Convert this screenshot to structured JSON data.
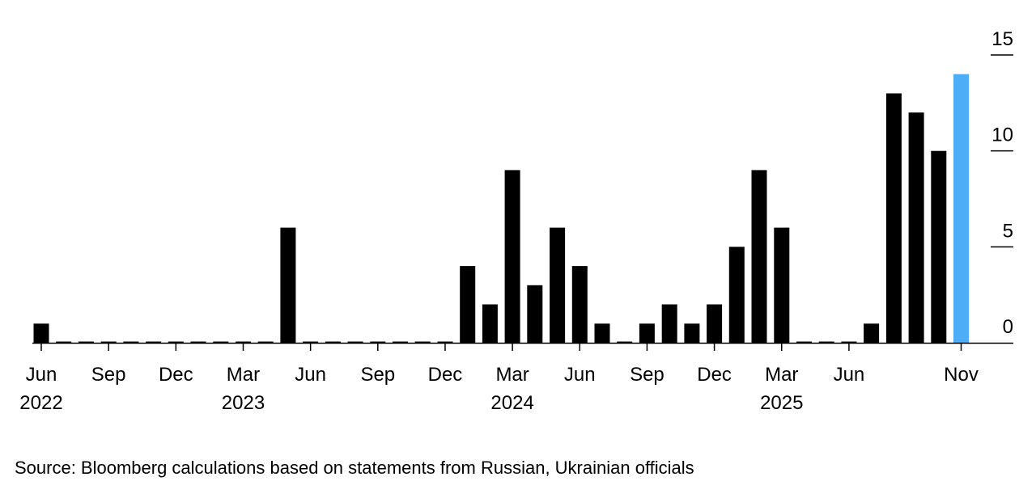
{
  "chart_data": {
    "type": "bar",
    "x_start": "2022-06",
    "categories": [
      "2022-06",
      "2022-07",
      "2022-08",
      "2022-09",
      "2022-10",
      "2022-11",
      "2022-12",
      "2023-01",
      "2023-02",
      "2023-03",
      "2023-04",
      "2023-05",
      "2023-06",
      "2023-07",
      "2023-08",
      "2023-09",
      "2023-10",
      "2023-11",
      "2023-12",
      "2024-01",
      "2024-02",
      "2024-03",
      "2024-04",
      "2024-05",
      "2024-06",
      "2024-07",
      "2024-08",
      "2024-09",
      "2024-10",
      "2024-11",
      "2024-12",
      "2025-01",
      "2025-02",
      "2025-03",
      "2025-04",
      "2025-05",
      "2025-06",
      "2025-07",
      "2025-08",
      "2025-09",
      "2025-10",
      "2025-11"
    ],
    "values": [
      1,
      0,
      0,
      0,
      0,
      0,
      0,
      0,
      0,
      0,
      0,
      6,
      0,
      0,
      0,
      0,
      0,
      0,
      0,
      4,
      2,
      9,
      3,
      6,
      4,
      1,
      0,
      1,
      2,
      1,
      2,
      5,
      9,
      6,
      0,
      0,
      0,
      1,
      13,
      12,
      10,
      14
    ],
    "highlight_index": 41,
    "colors": {
      "default": "#000000",
      "highlight": "#4dadf7",
      "axis": "#000000"
    },
    "ylim": [
      0,
      15
    ],
    "yticks": [
      "0",
      "5",
      "10",
      "15"
    ],
    "x_tick_labels": [
      {
        "index": 0,
        "month": "Jun",
        "year": "2022"
      },
      {
        "index": 3,
        "month": "Sep",
        "year": ""
      },
      {
        "index": 6,
        "month": "Dec",
        "year": ""
      },
      {
        "index": 9,
        "month": "Mar",
        "year": "2023"
      },
      {
        "index": 12,
        "month": "Jun",
        "year": ""
      },
      {
        "index": 15,
        "month": "Sep",
        "year": ""
      },
      {
        "index": 18,
        "month": "Dec",
        "year": ""
      },
      {
        "index": 21,
        "month": "Mar",
        "year": "2024"
      },
      {
        "index": 24,
        "month": "Jun",
        "year": ""
      },
      {
        "index": 27,
        "month": "Sep",
        "year": ""
      },
      {
        "index": 30,
        "month": "Dec",
        "year": ""
      },
      {
        "index": 33,
        "month": "Mar",
        "year": "2025"
      },
      {
        "index": 36,
        "month": "Jun",
        "year": ""
      },
      {
        "index": 41,
        "month": "Nov",
        "year": ""
      }
    ],
    "grid": false,
    "title": "",
    "xlabel": "",
    "ylabel": ""
  },
  "source": "Source: Bloomberg calculations based on statements from Russian, Ukrainian officials"
}
